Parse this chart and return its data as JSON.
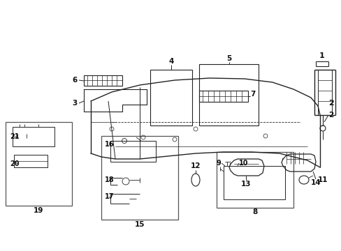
{
  "background_color": "#ffffff",
  "line_color": "#222222",
  "lw": 0.8
}
